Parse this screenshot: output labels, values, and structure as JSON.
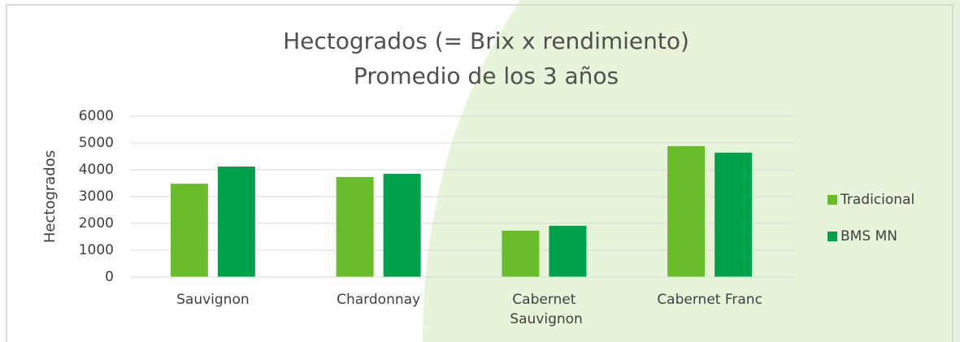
{
  "chart_data": {
    "type": "bar",
    "title": "Hectogrados (= Brix x rendimiento)",
    "subtitle": "Promedio de los 3 años",
    "y_axis_label": "Hectogrados",
    "categories": [
      "Sauvignon",
      "Chardonnay",
      "Cabernet Sauvignon",
      "Cabernet Franc"
    ],
    "series": [
      {
        "name": "Tradicional",
        "color": "#6abd2a",
        "values": [
          3480,
          3730,
          1730,
          4880
        ]
      },
      {
        "name": "BMS MN",
        "color": "#00a14b",
        "values": [
          4120,
          3850,
          1910,
          4640
        ]
      }
    ],
    "ylim": [
      0,
      6000
    ],
    "yticks": [
      0,
      1000,
      2000,
      3000,
      4000,
      5000,
      6000
    ],
    "grid": true,
    "legend_position": "right"
  }
}
